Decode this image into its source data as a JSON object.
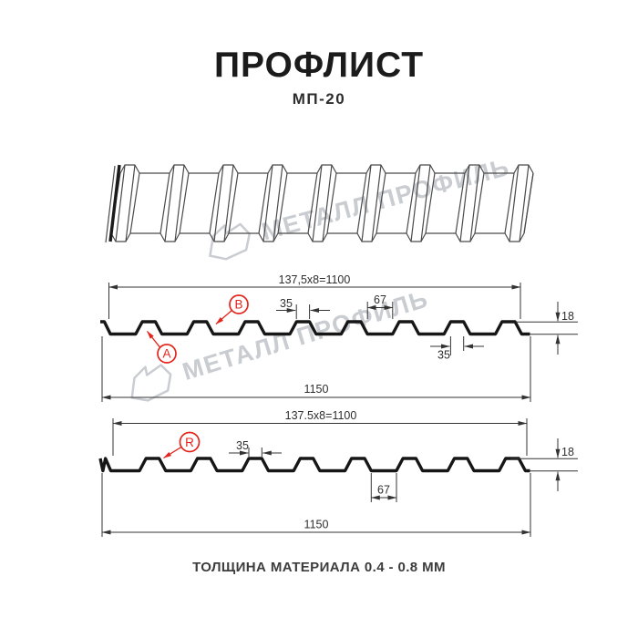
{
  "header": {
    "title": "ПРОФЛИСТ",
    "subtitle": "МП-20"
  },
  "watermark": {
    "brand": "МЕТАЛЛ ПРОФИЛЬ"
  },
  "sections": {
    "top_profile": {
      "coverage_width": "137,5x8=1100",
      "rib_top_width": "35",
      "valley_width": "67",
      "rib_bottom_width": "35",
      "profile_height": "18",
      "overall_width": "1150",
      "point_label_a": "А",
      "point_label_b": "В"
    },
    "bottom_profile": {
      "coverage_width": "137.5x8=1100",
      "rib_top_width": "35",
      "valley_width": "67",
      "profile_height": "18",
      "overall_width": "1150",
      "point_label_r": "R"
    }
  },
  "footer": {
    "text": "ТОЛЩИНА МАТЕРИАЛА 0.4 - 0.8 ММ"
  },
  "colors": {
    "accent_red": "#e3251c",
    "line_black": "#161616",
    "dim_gray": "#333333",
    "watermark_gray": "#c9ccd1"
  }
}
